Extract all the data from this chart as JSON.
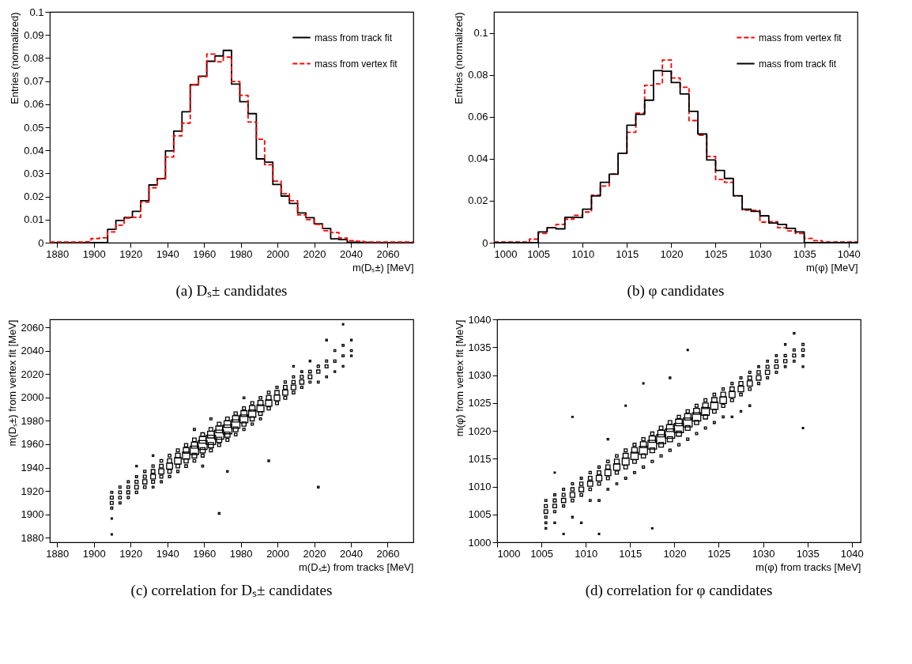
{
  "chart_data": [
    {
      "type": "histogram",
      "xlabel": "m(Dₛ±) [MeV]",
      "ylabel": "Entries (normalized)",
      "annotations": [
        "(a)  Dₛ± candidates"
      ],
      "bins": [
        1876,
        1880.5,
        1885,
        1889.5,
        1894,
        1898.5,
        1903,
        1907.5,
        1912,
        1916.5,
        1921,
        1925.5,
        1930,
        1934.5,
        1939,
        1943.5,
        1948,
        1952.5,
        1957,
        1961.5,
        1966,
        1970.5,
        1975,
        1979.5,
        1984,
        1988.5,
        1993,
        1997.5,
        2002,
        2006.5,
        2011,
        2015.5,
        2020,
        2024.5,
        2029,
        2033.5,
        2038,
        2042.5,
        2047,
        2051.5,
        2056,
        2060.5,
        2065,
        2069.5,
        2074
      ],
      "series": [
        {
          "name": "mass from track fit",
          "color": "#000000",
          "line_style": "solid",
          "values": [
            0,
            0,
            0,
            0,
            0,
            0,
            0,
            0.0058,
            0.0096,
            0.0109,
            0.0136,
            0.0182,
            0.025,
            0.0278,
            0.0398,
            0.0483,
            0.0567,
            0.0684,
            0.0721,
            0.0786,
            0.0809,
            0.0833,
            0.0687,
            0.0611,
            0.0559,
            0.0363,
            0.0349,
            0.0252,
            0.0202,
            0.017,
            0.0129,
            0.0108,
            0.0082,
            0.0061,
            0.0017,
            0.0013,
            0.0002,
            0.0001,
            0.0001,
            0,
            0,
            0,
            0,
            0
          ]
        },
        {
          "name": "mass from vertex fit",
          "color": "#ff0000",
          "line_style": "dashed",
          "values": [
            0.0003,
            0.0003,
            0.0003,
            0.0003,
            0.0004,
            0.0018,
            0.0021,
            0.0047,
            0.0076,
            0.0107,
            0.011,
            0.0176,
            0.0238,
            0.0276,
            0.0371,
            0.0463,
            0.0518,
            0.0684,
            0.0719,
            0.0817,
            0.0784,
            0.0804,
            0.0698,
            0.0638,
            0.0523,
            0.0448,
            0.0338,
            0.0267,
            0.0212,
            0.0182,
            0.012,
            0.01,
            0.0079,
            0.0052,
            0.0044,
            0.002,
            0.0009,
            0.0006,
            0.0003,
            0.0003,
            0.0003,
            0.0003,
            0.0003,
            0.0003
          ]
        }
      ],
      "xlim": [
        1876,
        2074
      ],
      "xticks": [
        1880,
        1900,
        1920,
        1940,
        1960,
        1980,
        2000,
        2020,
        2040,
        2060
      ],
      "ylim": [
        0,
        0.1
      ],
      "yticks": [
        0,
        0.01,
        0.02,
        0.03,
        0.04,
        0.05,
        0.06,
        0.07,
        0.08,
        0.09,
        0.1
      ],
      "legend": "top right"
    },
    {
      "type": "histogram",
      "xlabel": "m(φ) [MeV]",
      "ylabel": "Entries (normalized)",
      "annotations": [
        "(b)  φ candidates"
      ],
      "bins": [
        1000,
        1001,
        1002,
        1003,
        1004,
        1005,
        1006,
        1007,
        1008,
        1009,
        1010,
        1011,
        1012,
        1013,
        1014,
        1015,
        1016,
        1017,
        1018,
        1019,
        1020,
        1021,
        1022,
        1023,
        1024,
        1025,
        1026,
        1027,
        1028,
        1029,
        1030,
        1031,
        1032,
        1033,
        1034,
        1035,
        1036,
        1037,
        1038,
        1039,
        1040,
        1041
      ],
      "series": [
        {
          "name": "mass from vertex fit",
          "color": "#ff0000",
          "line_style": "dashed",
          "values": [
            0.0003,
            0.0003,
            0.0003,
            0.0003,
            0.0017,
            0.0044,
            0.0071,
            0.0087,
            0.0112,
            0.013,
            0.0146,
            0.0226,
            0.027,
            0.0327,
            0.0426,
            0.0526,
            0.0617,
            0.075,
            0.0757,
            0.0871,
            0.0785,
            0.0741,
            0.0582,
            0.0512,
            0.0411,
            0.0301,
            0.0288,
            0.0223,
            0.0155,
            0.0154,
            0.0098,
            0.01,
            0.0071,
            0.0056,
            0.0044,
            0.002,
            0.001,
            0.0003,
            0.0003,
            0.0003,
            0.0003
          ]
        },
        {
          "name": "mass from track fit",
          "color": "#000000",
          "line_style": "solid",
          "values": [
            0,
            0,
            0,
            0,
            0,
            0.0051,
            0.0071,
            0.0066,
            0.0121,
            0.012,
            0.016,
            0.0223,
            0.0288,
            0.0326,
            0.0426,
            0.056,
            0.0612,
            0.0679,
            0.082,
            0.0817,
            0.0763,
            0.0709,
            0.0626,
            0.0518,
            0.0394,
            0.0344,
            0.0306,
            0.0224,
            0.016,
            0.0149,
            0.0128,
            0.0094,
            0.0087,
            0.0068,
            0.0051,
            0,
            0,
            0,
            0,
            0,
            0
          ]
        }
      ],
      "xlim": [
        1000,
        1041
      ],
      "xticks": [
        1000,
        1005,
        1010,
        1015,
        1020,
        1025,
        1030,
        1035,
        1040
      ],
      "ylim": [
        0,
        0.11
      ],
      "yticks": [
        0,
        0.02,
        0.04,
        0.06,
        0.08,
        0.1
      ],
      "legend": "top right"
    },
    {
      "type": "bubble",
      "xlabel": "m(Dₛ±) from tracks [MeV]",
      "ylabel": "m(Dₛ±) from vertex fit [MeV]",
      "annotations": [
        "(c)  correlation for Dₛ± candidates"
      ],
      "marker": "square",
      "series": [
        {
          "color": "#000000",
          "x": [
            1909.75,
            1909.75,
            1909.75,
            1909.75,
            1909.75,
            1909.75,
            1914.25,
            1914.25,
            1914.25,
            1914.25,
            1918.75,
            1918.75,
            1918.75,
            1918.75,
            1923.25,
            1923.25,
            1923.25,
            1923.25,
            1923.25,
            1927.75,
            1927.75,
            1927.75,
            1927.75,
            1932.25,
            1932.25,
            1932.25,
            1932.25,
            1932.25,
            1932.25,
            1936.75,
            1936.75,
            1936.75,
            1936.75,
            1936.75,
            1941.25,
            1941.25,
            1941.25,
            1941.25,
            1941.25,
            1945.75,
            1945.75,
            1945.75,
            1945.75,
            1945.75,
            1950.25,
            1950.25,
            1950.25,
            1950.25,
            1950.25,
            1954.75,
            1954.75,
            1954.75,
            1954.75,
            1954.75,
            1954.75,
            1959.25,
            1959.25,
            1959.25,
            1959.25,
            1959.25,
            1959.25,
            1963.75,
            1963.75,
            1963.75,
            1963.75,
            1963.75,
            1963.75,
            1968.25,
            1968.25,
            1968.25,
            1968.25,
            1968.25,
            1968.25,
            1972.75,
            1972.75,
            1972.75,
            1972.75,
            1972.75,
            1972.75,
            1977.25,
            1977.25,
            1977.25,
            1977.25,
            1977.25,
            1981.75,
            1981.75,
            1981.75,
            1981.75,
            1981.75,
            1981.75,
            1986.25,
            1986.25,
            1986.25,
            1986.25,
            1986.25,
            1990.75,
            1990.75,
            1990.75,
            1990.75,
            1990.75,
            1995.25,
            1995.25,
            1995.25,
            1995.25,
            1995.25,
            1999.75,
            1999.75,
            1999.75,
            1999.75,
            2004.25,
            2004.25,
            2004.25,
            2004.25,
            2008.75,
            2008.75,
            2008.75,
            2008.75,
            2008.75,
            2013.25,
            2013.25,
            2013.25,
            2013.25,
            2017.75,
            2017.75,
            2017.75,
            2017.75,
            2022.25,
            2022.25,
            2022.25,
            2022.25,
            2026.75,
            2026.75,
            2026.75,
            2026.75,
            2031.25,
            2031.25,
            2031.25,
            2035.75,
            2035.75,
            2035.75,
            2035.75,
            2040.25,
            2040.25,
            2040.25
          ],
          "values": [
            1914.25,
            1909.75,
            1905.25,
            1918.75,
            1896.25,
            1882.75,
            1914.25,
            1918.75,
            1923.25,
            1909.75,
            1918.75,
            1923.25,
            1914.25,
            1927.75,
            1923.25,
            1927.75,
            1918.75,
            1932.25,
            1941.25,
            1927.75,
            1932.25,
            1923.25,
            1936.75,
            1932.25,
            1936.75,
            1927.75,
            1941.25,
            1923.25,
            1950.25,
            1936.75,
            1941.25,
            1932.25,
            1945.75,
            1927.75,
            1941.25,
            1945.75,
            1936.75,
            1950.25,
            1932.25,
            1945.75,
            1950.25,
            1941.25,
            1954.75,
            1936.75,
            1950.25,
            1954.75,
            1945.75,
            1959.25,
            1941.25,
            1954.75,
            1959.25,
            1950.25,
            1963.75,
            1945.75,
            1972.75,
            1959.25,
            1963.75,
            1954.75,
            1968.25,
            1950.25,
            1941.25,
            1963.75,
            1968.25,
            1959.25,
            1972.75,
            1954.75,
            1981.75,
            1968.25,
            1972.75,
            1963.75,
            1977.25,
            1959.25,
            1900.75,
            1972.75,
            1977.25,
            1968.25,
            1981.75,
            1963.75,
            1936.75,
            1977.25,
            1981.75,
            1972.75,
            1986.25,
            1968.25,
            1981.75,
            1986.25,
            1977.25,
            1990.75,
            1972.75,
            1999.75,
            1986.25,
            1990.75,
            1981.75,
            1995.25,
            1977.25,
            1990.75,
            1995.25,
            1986.25,
            1999.75,
            1981.75,
            1995.25,
            1999.75,
            1990.75,
            2004.25,
            1945.75,
            1999.75,
            2004.25,
            1995.25,
            2008.75,
            2004.25,
            2008.75,
            1999.75,
            2013.25,
            2008.75,
            2013.25,
            2004.25,
            2017.75,
            2026.75,
            2013.25,
            2017.75,
            2008.75,
            2022.25,
            2017.75,
            2022.25,
            2013.25,
            2031.25,
            2022.25,
            2026.75,
            2013.25,
            1923.25,
            2026.75,
            2031.25,
            2017.75,
            2049.25,
            2031.25,
            2040.25,
            2022.25,
            2035.75,
            2044.75,
            2026.75,
            2062.75,
            2040.25,
            2049.25,
            2035.75
          ],
          "sizes": [
            0.1,
            0.1,
            0.05,
            0.05,
            0.02,
            0.02,
            0.08,
            0.08,
            0.05,
            0.05,
            0.1,
            0.08,
            0.05,
            0.05,
            0.15,
            0.1,
            0.06,
            0.05,
            0.03,
            0.2,
            0.1,
            0.08,
            0.06,
            0.25,
            0.15,
            0.1,
            0.06,
            0.04,
            0.03,
            0.3,
            0.15,
            0.1,
            0.08,
            0.05,
            0.4,
            0.2,
            0.15,
            0.08,
            0.06,
            0.5,
            0.25,
            0.15,
            0.1,
            0.06,
            0.6,
            0.35,
            0.2,
            0.12,
            0.08,
            0.8,
            0.4,
            0.25,
            0.15,
            0.08,
            0.05,
            0.9,
            0.5,
            0.3,
            0.15,
            0.1,
            0.04,
            1,
            0.5,
            0.3,
            0.15,
            0.1,
            0.05,
            0.95,
            0.5,
            0.3,
            0.15,
            0.1,
            0.03,
            0.9,
            0.5,
            0.3,
            0.15,
            0.1,
            0.03,
            0.8,
            0.45,
            0.25,
            0.12,
            0.08,
            0.7,
            0.4,
            0.2,
            0.1,
            0.06,
            0.04,
            0.6,
            0.35,
            0.2,
            0.1,
            0.06,
            0.55,
            0.3,
            0.15,
            0.08,
            0.05,
            0.45,
            0.25,
            0.12,
            0.08,
            0.03,
            0.35,
            0.2,
            0.1,
            0.06,
            0.3,
            0.15,
            0.1,
            0.06,
            0.25,
            0.12,
            0.08,
            0.05,
            0.03,
            0.2,
            0.1,
            0.06,
            0.04,
            0.15,
            0.08,
            0.05,
            0.03,
            0.12,
            0.06,
            0.04,
            0.03,
            0.1,
            0.05,
            0.04,
            0.03,
            0.06,
            0.04,
            0.03,
            0.05,
            0.04,
            0.03,
            0.02,
            0.04,
            0.03,
            0.03
          ]
        }
      ],
      "xlim": [
        1876,
        2074
      ],
      "xticks": [
        1880,
        1900,
        1920,
        1940,
        1960,
        1980,
        2000,
        2020,
        2040,
        2060
      ],
      "ylim": [
        1876,
        2067
      ],
      "yticks": [
        1880,
        1900,
        1920,
        1940,
        1960,
        1980,
        2000,
        2020,
        2040,
        2060
      ]
    },
    {
      "type": "bubble",
      "xlabel": "m(φ) from tracks [MeV]",
      "ylabel": "m(φ) from vertex fit [MeV]",
      "annotations": [
        "(d)  correlation for φ candidates"
      ],
      "marker": "square",
      "series": [
        {
          "color": "#000000",
          "x": [
            1005.5,
            1005.5,
            1005.5,
            1005.5,
            1005.5,
            1005.5,
            1006.5,
            1006.5,
            1006.5,
            1006.5,
            1006.5,
            1006.5,
            1007.5,
            1007.5,
            1007.5,
            1007.5,
            1007.5,
            1008.5,
            1008.5,
            1008.5,
            1008.5,
            1008.5,
            1008.5,
            1009.5,
            1009.5,
            1009.5,
            1009.5,
            1009.5,
            1010.5,
            1010.5,
            1010.5,
            1010.5,
            1010.5,
            1011.5,
            1011.5,
            1011.5,
            1011.5,
            1011.5,
            1011.5,
            1012.5,
            1012.5,
            1012.5,
            1012.5,
            1012.5,
            1012.5,
            1013.5,
            1013.5,
            1013.5,
            1013.5,
            1013.5,
            1014.5,
            1014.5,
            1014.5,
            1014.5,
            1014.5,
            1014.5,
            1015.5,
            1015.5,
            1015.5,
            1015.5,
            1015.5,
            1016.5,
            1016.5,
            1016.5,
            1016.5,
            1016.5,
            1016.5,
            1017.5,
            1017.5,
            1017.5,
            1017.5,
            1017.5,
            1017.5,
            1018.5,
            1018.5,
            1018.5,
            1018.5,
            1018.5,
            1019.5,
            1019.5,
            1019.5,
            1019.5,
            1019.5,
            1019.5,
            1020.5,
            1020.5,
            1020.5,
            1020.5,
            1020.5,
            1021.5,
            1021.5,
            1021.5,
            1021.5,
            1021.5,
            1021.5,
            1022.5,
            1022.5,
            1022.5,
            1022.5,
            1022.5,
            1023.5,
            1023.5,
            1023.5,
            1023.5,
            1023.5,
            1024.5,
            1024.5,
            1024.5,
            1024.5,
            1024.5,
            1025.5,
            1025.5,
            1025.5,
            1025.5,
            1025.5,
            1026.5,
            1026.5,
            1026.5,
            1026.5,
            1026.5,
            1027.5,
            1027.5,
            1027.5,
            1027.5,
            1027.5,
            1028.5,
            1028.5,
            1028.5,
            1028.5,
            1028.5,
            1029.5,
            1029.5,
            1029.5,
            1029.5,
            1030.5,
            1030.5,
            1030.5,
            1030.5,
            1031.5,
            1031.5,
            1031.5,
            1031.5,
            1032.5,
            1032.5,
            1032.5,
            1032.5,
            1033.5,
            1033.5,
            1033.5,
            1033.5,
            1034.5,
            1034.5,
            1034.5,
            1034.5,
            1034.5
          ],
          "values": [
            1005.5,
            1006.5,
            1004.5,
            1007.5,
            1003.5,
            1002.5,
            1006.5,
            1007.5,
            1005.5,
            1008.5,
            1003.5,
            1012.5,
            1007.5,
            1008.5,
            1006.5,
            1009.5,
            1001.5,
            1008.5,
            1009.5,
            1007.5,
            1010.5,
            1004.5,
            1022.5,
            1009.5,
            1010.5,
            1008.5,
            1011.5,
            1003.5,
            1010.5,
            1011.5,
            1009.5,
            1012.5,
            1007.5,
            1011.5,
            1012.5,
            1010.5,
            1013.5,
            1007.5,
            1001.5,
            1012.5,
            1013.5,
            1011.5,
            1014.5,
            1009.5,
            1018.5,
            1013.5,
            1014.5,
            1012.5,
            1015.5,
            1010.5,
            1014.5,
            1015.5,
            1013.5,
            1016.5,
            1011.5,
            1024.5,
            1015.5,
            1016.5,
            1014.5,
            1017.5,
            1012.5,
            1016.5,
            1017.5,
            1015.5,
            1018.5,
            1013.5,
            1028.5,
            1017.5,
            1018.5,
            1016.5,
            1019.5,
            1014.5,
            1002.5,
            1018.5,
            1019.5,
            1017.5,
            1020.5,
            1015.5,
            1019.5,
            1020.5,
            1018.5,
            1021.5,
            1016.5,
            1029.5,
            1020.5,
            1021.5,
            1019.5,
            1022.5,
            1017.5,
            1021.5,
            1022.5,
            1020.5,
            1023.5,
            1018.5,
            1034.5,
            1022.5,
            1023.5,
            1021.5,
            1024.5,
            1019.5,
            1023.5,
            1024.5,
            1022.5,
            1025.5,
            1020.5,
            1024.5,
            1025.5,
            1023.5,
            1026.5,
            1021.5,
            1025.5,
            1026.5,
            1024.5,
            1027.5,
            1022.5,
            1026.5,
            1027.5,
            1025.5,
            1028.5,
            1022.5,
            1027.5,
            1028.5,
            1026.5,
            1029.5,
            1023.5,
            1028.5,
            1029.5,
            1027.5,
            1030.5,
            1024.5,
            1029.5,
            1030.5,
            1028.5,
            1031.5,
            1030.5,
            1031.5,
            1029.5,
            1032.5,
            1031.5,
            1032.5,
            1030.5,
            1033.5,
            1032.5,
            1033.5,
            1031.5,
            1035.5,
            1033.5,
            1034.5,
            1032.5,
            1037.5,
            1034.5,
            1035.5,
            1033.5,
            1031.5,
            1020.5
          ],
          "sizes": [
            0.15,
            0.1,
            0.06,
            0.05,
            0.04,
            0.03,
            0.15,
            0.1,
            0.06,
            0.05,
            0.03,
            0.02,
            0.2,
            0.1,
            0.06,
            0.05,
            0.02,
            0.25,
            0.12,
            0.08,
            0.05,
            0.03,
            0.02,
            0.25,
            0.12,
            0.08,
            0.05,
            0.03,
            0.3,
            0.15,
            0.08,
            0.06,
            0.04,
            0.35,
            0.15,
            0.1,
            0.06,
            0.04,
            0.02,
            0.4,
            0.2,
            0.1,
            0.08,
            0.04,
            0.03,
            0.45,
            0.25,
            0.12,
            0.08,
            0.04,
            0.55,
            0.3,
            0.15,
            0.1,
            0.05,
            0.02,
            0.6,
            0.35,
            0.15,
            0.1,
            0.05,
            0.75,
            0.4,
            0.2,
            0.12,
            0.06,
            0.02,
            0.85,
            0.45,
            0.25,
            0.12,
            0.06,
            0.02,
            0.95,
            0.5,
            0.25,
            0.15,
            0.06,
            1,
            0.55,
            0.3,
            0.15,
            0.06,
            0.03,
            0.95,
            0.5,
            0.3,
            0.12,
            0.06,
            0.9,
            0.45,
            0.25,
            0.12,
            0.06,
            0.02,
            0.8,
            0.4,
            0.2,
            0.1,
            0.05,
            0.7,
            0.35,
            0.2,
            0.1,
            0.05,
            0.6,
            0.3,
            0.15,
            0.08,
            0.05,
            0.5,
            0.25,
            0.12,
            0.06,
            0.04,
            0.4,
            0.2,
            0.1,
            0.06,
            0.03,
            0.35,
            0.18,
            0.08,
            0.05,
            0.03,
            0.3,
            0.15,
            0.08,
            0.05,
            0.03,
            0.25,
            0.12,
            0.06,
            0.04,
            0.2,
            0.1,
            0.05,
            0.04,
            0.15,
            0.08,
            0.05,
            0.04,
            0.12,
            0.06,
            0.04,
            0.03,
            0.1,
            0.05,
            0.04,
            0.03,
            0.08,
            0.05,
            0.04,
            0.03,
            0.02
          ]
        }
      ],
      "xlim": [
        1000,
        1041
      ],
      "xticks": [
        1000,
        1005,
        1010,
        1015,
        1020,
        1025,
        1030,
        1035,
        1040
      ],
      "ylim": [
        1000,
        1040
      ],
      "yticks": [
        1000,
        1005,
        1010,
        1015,
        1020,
        1025,
        1030,
        1035,
        1040
      ]
    }
  ]
}
